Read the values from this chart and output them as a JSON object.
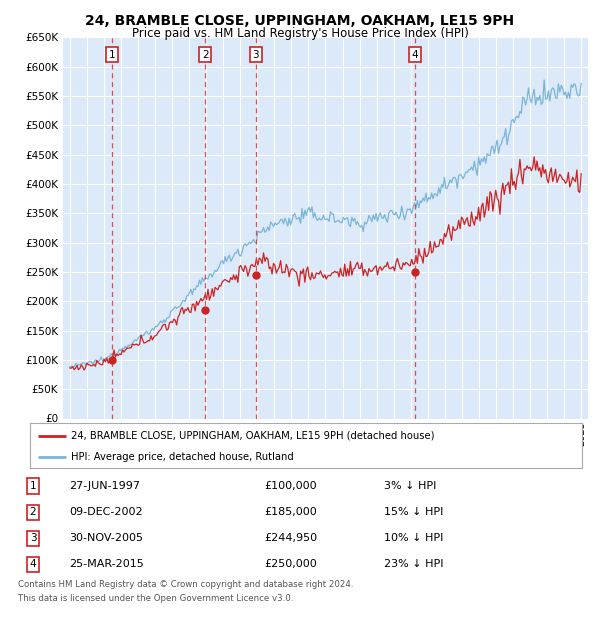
{
  "title": "24, BRAMBLE CLOSE, UPPINGHAM, OAKHAM, LE15 9PH",
  "subtitle": "Price paid vs. HM Land Registry's House Price Index (HPI)",
  "ylim": [
    0,
    650000
  ],
  "yticks": [
    0,
    50000,
    100000,
    150000,
    200000,
    250000,
    300000,
    350000,
    400000,
    450000,
    500000,
    550000,
    600000,
    650000
  ],
  "xlim_start": 1994.6,
  "xlim_end": 2025.4,
  "background_color": "#dce9f8",
  "grid_color": "#ffffff",
  "hpi_color": "#7ab4d8",
  "price_color": "#cc2222",
  "dashed_line_color": "#cc4444",
  "legend_label_price": "24, BRAMBLE CLOSE, UPPINGHAM, OAKHAM, LE15 9PH (detached house)",
  "legend_label_hpi": "HPI: Average price, detached house, Rutland",
  "sales": [
    {
      "num": 1,
      "date": "27-JUN-1997",
      "year": 1997.49,
      "price": 100000,
      "hpi_pct": "3% ↓ HPI"
    },
    {
      "num": 2,
      "date": "09-DEC-2002",
      "year": 2002.94,
      "price": 185000,
      "hpi_pct": "15% ↓ HPI"
    },
    {
      "num": 3,
      "date": "30-NOV-2005",
      "year": 2005.91,
      "price": 244950,
      "hpi_pct": "10% ↓ HPI"
    },
    {
      "num": 4,
      "date": "25-MAR-2015",
      "year": 2015.23,
      "price": 250000,
      "hpi_pct": "23% ↓ HPI"
    }
  ],
  "footer1": "Contains HM Land Registry data © Crown copyright and database right 2024.",
  "footer2": "This data is licensed under the Open Government Licence v3.0."
}
